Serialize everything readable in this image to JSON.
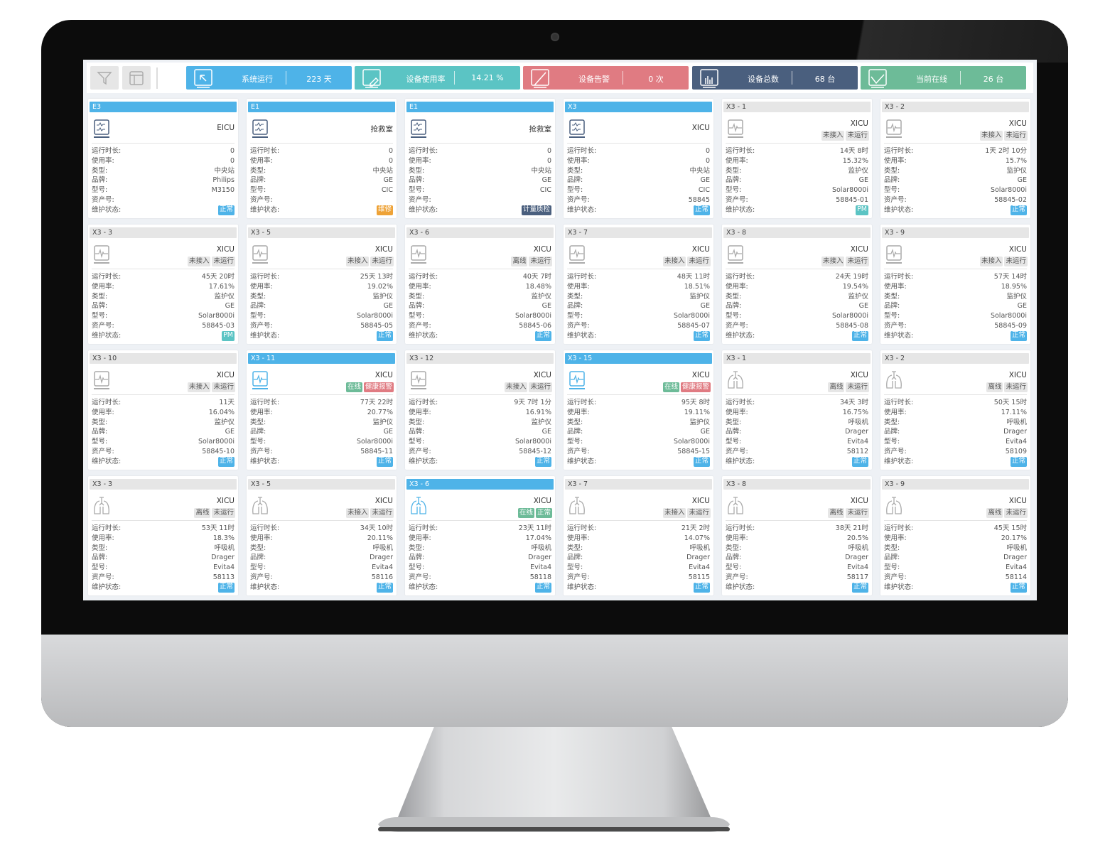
{
  "colors": {
    "blue": "#4eb3e8",
    "teal": "#5bc4c4",
    "red": "#e07b82",
    "navy": "#4a5f7e",
    "green": "#6dbb98",
    "orange": "#eea236",
    "gray_tag": "#e6e6e6"
  },
  "toolbar": {
    "filter_icon": "filter-icon",
    "layout_icon": "layout-icon"
  },
  "stats": [
    {
      "label": "系统运行",
      "value": "223 天",
      "color": "#4eb3e8",
      "icon": "cursor-monitor-icon"
    },
    {
      "label": "设备使用率",
      "value": "14.21 %",
      "color": "#5bc4c4",
      "icon": "edit-monitor-icon"
    },
    {
      "label": "设备告警",
      "value": "0 次",
      "color": "#e07b82",
      "icon": "slash-monitor-icon"
    },
    {
      "label": "设备总数",
      "value": "68 台",
      "color": "#4a5f7e",
      "icon": "bar-chart-monitor-icon"
    },
    {
      "label": "当前在线",
      "value": "26 台",
      "color": "#6dbb98",
      "icon": "check-monitor-icon"
    }
  ],
  "field_labels": [
    "运行时长:",
    "使用率:",
    "类型:",
    "品牌:",
    "型号:",
    "资产号:",
    "维护状态:"
  ],
  "tag_colors": {
    "gray": {
      "bg": "#e6e6e6",
      "fg": "#555"
    },
    "online": {
      "bg": "#6dbb98",
      "fg": "#fff"
    },
    "alarm": {
      "bg": "#e07b82",
      "fg": "#fff"
    },
    "ok": {
      "bg": "#6dbb98",
      "fg": "#fff"
    }
  },
  "badge_colors": {
    "正常": "#4eb3e8",
    "PM": "#5bc4c4",
    "维修": "#eea236",
    "计量质检": "#4a5f7e"
  },
  "cards": [
    {
      "header": "E3",
      "active": true,
      "icon": "central",
      "location": "EICU",
      "tags": [],
      "values": [
        "0",
        "0",
        "中央站",
        "Philips",
        "M3150",
        "",
        "正常"
      ]
    },
    {
      "header": "E1",
      "active": true,
      "icon": "central",
      "location": "抢救室",
      "tags": [],
      "values": [
        "0",
        "0",
        "中央站",
        "GE",
        "CIC",
        "",
        "维修"
      ]
    },
    {
      "header": "E1",
      "active": true,
      "icon": "central",
      "location": "抢救室",
      "tags": [],
      "values": [
        "0",
        "0",
        "中央站",
        "GE",
        "CIC",
        "",
        "计量质检"
      ]
    },
    {
      "header": "X3",
      "active": true,
      "icon": "central",
      "location": "XICU",
      "tags": [],
      "values": [
        "0",
        "0",
        "中央站",
        "GE",
        "CIC",
        "58845",
        "正常"
      ]
    },
    {
      "header": "X3 - 1",
      "active": false,
      "icon": "monitor",
      "location": "XICU",
      "tags": [
        {
          "text": "未接入",
          "kind": "gray"
        },
        {
          "text": "未运行",
          "kind": "gray"
        }
      ],
      "values": [
        "14天 8时",
        "15.32%",
        "监护仪",
        "GE",
        "Solar8000i",
        "58845-01",
        "PM"
      ]
    },
    {
      "header": "X3 - 2",
      "active": false,
      "icon": "monitor",
      "location": "XICU",
      "tags": [
        {
          "text": "未接入",
          "kind": "gray"
        },
        {
          "text": "未运行",
          "kind": "gray"
        }
      ],
      "values": [
        "1天 2时 10分",
        "15.7%",
        "监护仪",
        "GE",
        "Solar8000i",
        "58845-02",
        "正常"
      ]
    },
    {
      "header": "X3 - 3",
      "active": false,
      "icon": "monitor",
      "location": "XICU",
      "tags": [
        {
          "text": "未接入",
          "kind": "gray"
        },
        {
          "text": "未运行",
          "kind": "gray"
        }
      ],
      "values": [
        "45天 20时",
        "17.61%",
        "监护仪",
        "GE",
        "Solar8000i",
        "58845-03",
        "PM"
      ]
    },
    {
      "header": "X3 - 5",
      "active": false,
      "icon": "monitor",
      "location": "XICU",
      "tags": [
        {
          "text": "未接入",
          "kind": "gray"
        },
        {
          "text": "未运行",
          "kind": "gray"
        }
      ],
      "values": [
        "25天 13时",
        "19.02%",
        "监护仪",
        "GE",
        "Solar8000i",
        "58845-05",
        "正常"
      ]
    },
    {
      "header": "X3 - 6",
      "active": false,
      "icon": "monitor",
      "location": "XICU",
      "tags": [
        {
          "text": "离线",
          "kind": "gray"
        },
        {
          "text": "未运行",
          "kind": "gray"
        }
      ],
      "values": [
        "40天 7时",
        "18.48%",
        "监护仪",
        "GE",
        "Solar8000i",
        "58845-06",
        "正常"
      ]
    },
    {
      "header": "X3 - 7",
      "active": false,
      "icon": "monitor",
      "location": "XICU",
      "tags": [
        {
          "text": "未接入",
          "kind": "gray"
        },
        {
          "text": "未运行",
          "kind": "gray"
        }
      ],
      "values": [
        "48天 11时",
        "18.51%",
        "监护仪",
        "GE",
        "Solar8000i",
        "58845-07",
        "正常"
      ]
    },
    {
      "header": "X3 - 8",
      "active": false,
      "icon": "monitor",
      "location": "XICU",
      "tags": [
        {
          "text": "未接入",
          "kind": "gray"
        },
        {
          "text": "未运行",
          "kind": "gray"
        }
      ],
      "values": [
        "24天 19时",
        "19.54%",
        "监护仪",
        "GE",
        "Solar8000i",
        "58845-08",
        "正常"
      ]
    },
    {
      "header": "X3 - 9",
      "active": false,
      "icon": "monitor",
      "location": "XICU",
      "tags": [
        {
          "text": "未接入",
          "kind": "gray"
        },
        {
          "text": "未运行",
          "kind": "gray"
        }
      ],
      "values": [
        "57天 14时",
        "18.95%",
        "监护仪",
        "GE",
        "Solar8000i",
        "58845-09",
        "正常"
      ]
    },
    {
      "header": "X3 - 10",
      "active": false,
      "icon": "monitor",
      "location": "XICU",
      "tags": [
        {
          "text": "未接入",
          "kind": "gray"
        },
        {
          "text": "未运行",
          "kind": "gray"
        }
      ],
      "values": [
        "11天",
        "16.04%",
        "监护仪",
        "GE",
        "Solar8000i",
        "58845-10",
        "正常"
      ]
    },
    {
      "header": "X3 - 11",
      "active": true,
      "icon": "monitor",
      "location": "XICU",
      "tags": [
        {
          "text": "在线",
          "kind": "online"
        },
        {
          "text": "健康报警",
          "kind": "alarm"
        }
      ],
      "values": [
        "77天 22时",
        "20.77%",
        "监护仪",
        "GE",
        "Solar8000i",
        "58845-11",
        "正常"
      ]
    },
    {
      "header": "X3 - 12",
      "active": false,
      "icon": "monitor",
      "location": "XICU",
      "tags": [
        {
          "text": "未接入",
          "kind": "gray"
        },
        {
          "text": "未运行",
          "kind": "gray"
        }
      ],
      "values": [
        "9天 7时 1分",
        "16.91%",
        "监护仪",
        "GE",
        "Solar8000i",
        "58845-12",
        "正常"
      ]
    },
    {
      "header": "X3 - 15",
      "active": true,
      "icon": "monitor",
      "location": "XICU",
      "tags": [
        {
          "text": "在线",
          "kind": "online"
        },
        {
          "text": "健康报警",
          "kind": "alarm"
        }
      ],
      "values": [
        "95天 8时",
        "19.11%",
        "监护仪",
        "GE",
        "Solar8000i",
        "58845-15",
        "正常"
      ]
    },
    {
      "header": "X3 - 1",
      "active": false,
      "icon": "ventilator",
      "location": "XICU",
      "tags": [
        {
          "text": "离线",
          "kind": "gray"
        },
        {
          "text": "未运行",
          "kind": "gray"
        }
      ],
      "values": [
        "34天 3时",
        "16.75%",
        "呼吸机",
        "Drager",
        "Evita4",
        "58112",
        "正常"
      ]
    },
    {
      "header": "X3 - 2",
      "active": false,
      "icon": "ventilator",
      "location": "XICU",
      "tags": [
        {
          "text": "离线",
          "kind": "gray"
        },
        {
          "text": "未运行",
          "kind": "gray"
        }
      ],
      "values": [
        "50天 15时",
        "17.11%",
        "呼吸机",
        "Drager",
        "Evita4",
        "58109",
        "正常"
      ]
    },
    {
      "header": "X3 - 3",
      "active": false,
      "icon": "ventilator",
      "location": "XICU",
      "tags": [
        {
          "text": "离线",
          "kind": "gray"
        },
        {
          "text": "未运行",
          "kind": "gray"
        }
      ],
      "values": [
        "53天 11时",
        "18.3%",
        "呼吸机",
        "Drager",
        "Evita4",
        "58113",
        "正常"
      ]
    },
    {
      "header": "X3 - 5",
      "active": false,
      "icon": "ventilator",
      "location": "XICU",
      "tags": [
        {
          "text": "未接入",
          "kind": "gray"
        },
        {
          "text": "未运行",
          "kind": "gray"
        }
      ],
      "values": [
        "34天 10时",
        "20.11%",
        "呼吸机",
        "Drager",
        "Evita4",
        "58116",
        "正常"
      ]
    },
    {
      "header": "X3 - 6",
      "active": true,
      "icon": "ventilator",
      "location": "XICU",
      "tags": [
        {
          "text": "在线",
          "kind": "online"
        },
        {
          "text": "正常",
          "kind": "ok"
        }
      ],
      "values": [
        "23天 11时",
        "17.04%",
        "呼吸机",
        "Drager",
        "Evita4",
        "58118",
        "正常"
      ]
    },
    {
      "header": "X3 - 7",
      "active": false,
      "icon": "ventilator",
      "location": "XICU",
      "tags": [
        {
          "text": "未接入",
          "kind": "gray"
        },
        {
          "text": "未运行",
          "kind": "gray"
        }
      ],
      "values": [
        "21天 2时",
        "14.07%",
        "呼吸机",
        "Drager",
        "Evita4",
        "58115",
        "正常"
      ]
    },
    {
      "header": "X3 - 8",
      "active": false,
      "icon": "ventilator",
      "location": "XICU",
      "tags": [
        {
          "text": "离线",
          "kind": "gray"
        },
        {
          "text": "未运行",
          "kind": "gray"
        }
      ],
      "values": [
        "38天 21时",
        "20.5%",
        "呼吸机",
        "Drager",
        "Evita4",
        "58117",
        "正常"
      ]
    },
    {
      "header": "X3 - 9",
      "active": false,
      "icon": "ventilator",
      "location": "XICU",
      "tags": [
        {
          "text": "离线",
          "kind": "gray"
        },
        {
          "text": "未运行",
          "kind": "gray"
        }
      ],
      "values": [
        "45天 15时",
        "20.17%",
        "呼吸机",
        "Drager",
        "Evita4",
        "58114",
        "正常"
      ]
    }
  ]
}
